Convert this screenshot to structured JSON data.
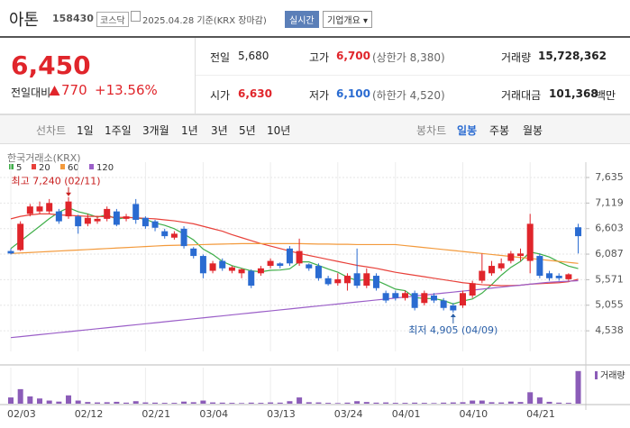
{
  "header": {
    "name": "아톤",
    "code": "158430",
    "market": "코스닥",
    "date": "2025.04.28 기준(KRX 장마감)",
    "buttons": [
      "실시간",
      "기업개요"
    ]
  },
  "summary": {
    "price": "6,450",
    "change_label": "전일대비",
    "change": "770",
    "change_pct": "+13.56%"
  },
  "quotes": [
    {
      "label": "전일",
      "value": "5,680"
    },
    {
      "label": "고가",
      "value": "6,700",
      "note": "(상한가 8,380)"
    },
    {
      "label": "거래량",
      "value": "15,728,362"
    },
    {
      "label": "시가",
      "value": "6,630"
    },
    {
      "label": "저가",
      "value": "6,100",
      "note": "(하한가 4,520)"
    },
    {
      "label": "거래대금",
      "value": "101,368",
      "unit": "백만"
    }
  ],
  "tabs": {
    "line": {
      "label": "선차트",
      "items": [
        "1일",
        "1주일",
        "3개월",
        "1년",
        "3년",
        "5년",
        "10년"
      ]
    },
    "candle": {
      "label": "봉차트",
      "items": [
        "일봉",
        "주봉",
        "월봉"
      ]
    }
  },
  "chart_data": {
    "type": "candlestick",
    "source": "한국거래소(KRX)",
    "volume_label": "거래량",
    "categories": [
      "02/03",
      null,
      null,
      null,
      null,
      null,
      null,
      "02/12",
      null,
      null,
      null,
      null,
      null,
      null,
      "02/21",
      null,
      null,
      null,
      null,
      null,
      "03/04",
      null,
      null,
      null,
      null,
      null,
      null,
      "03/13",
      null,
      null,
      null,
      null,
      null,
      null,
      "03/24",
      null,
      null,
      null,
      null,
      null,
      "04/01",
      null,
      null,
      null,
      null,
      null,
      null,
      "04/10",
      null,
      null,
      null,
      null,
      null,
      null,
      "04/21",
      null,
      null,
      null,
      null,
      null
    ],
    "open": [
      6150,
      6170,
      6900,
      6950,
      6950,
      6950,
      6850,
      6850,
      6700,
      6750,
      6800,
      6950,
      6800,
      7100,
      6820,
      6750,
      6550,
      6420,
      6600,
      6200,
      6050,
      5750,
      5950,
      5750,
      5700,
      5750,
      5700,
      5850,
      5900,
      6200,
      5900,
      5880,
      5850,
      5600,
      5500,
      5500,
      5700,
      5450,
      5650,
      5300,
      5300,
      5200,
      5300,
      5100,
      5250,
      5150,
      5050,
      5050,
      5250,
      5550,
      5700,
      5800,
      5950,
      6050,
      5950,
      6050,
      5700,
      5650,
      5580,
      6630
    ],
    "high": [
      6200,
      6750,
      7100,
      7150,
      7200,
      7000,
      7240,
      6880,
      6900,
      6850,
      7050,
      7000,
      6900,
      7200,
      6850,
      6780,
      6600,
      6550,
      6650,
      6230,
      6080,
      5950,
      6000,
      5850,
      5800,
      5780,
      5850,
      6000,
      5920,
      6250,
      6400,
      5900,
      5900,
      5650,
      5700,
      5700,
      6200,
      5800,
      5700,
      5350,
      5350,
      5350,
      5350,
      5350,
      5300,
      5200,
      5100,
      5350,
      5550,
      6100,
      5950,
      6000,
      6150,
      6200,
      6900,
      6100,
      5750,
      5700,
      5700,
      6700
    ],
    "low": [
      6080,
      6150,
      6850,
      6900,
      6900,
      6700,
      6800,
      6500,
      6650,
      6700,
      6750,
      6650,
      6750,
      6700,
      6600,
      6550,
      6400,
      6380,
      6200,
      6000,
      5600,
      5700,
      5750,
      5700,
      5600,
      5400,
      5650,
      5800,
      5800,
      5850,
      5850,
      5750,
      5550,
      5450,
      5450,
      5350,
      5400,
      5400,
      5350,
      5100,
      5150,
      5150,
      4950,
      5050,
      5100,
      4950,
      4905,
      5000,
      5200,
      5500,
      5650,
      5750,
      5900,
      5950,
      5700,
      5600,
      5550,
      5550,
      5550,
      6100
    ],
    "close": [
      6100,
      6700,
      7050,
      7050,
      7120,
      6750,
      7150,
      6650,
      6820,
      6800,
      7000,
      6680,
      6850,
      6780,
      6650,
      6620,
      6450,
      6500,
      6250,
      6050,
      5700,
      5900,
      5800,
      5820,
      5780,
      5450,
      5800,
      5950,
      5850,
      5900,
      6150,
      5800,
      5600,
      5480,
      5580,
      5650,
      5450,
      5700,
      5400,
      5150,
      5200,
      5300,
      5000,
      5300,
      5150,
      5000,
      4950,
      5300,
      5500,
      5750,
      5850,
      5900,
      6100,
      6100,
      6700,
      5650,
      5600,
      5600,
      5680,
      6450
    ],
    "volume": [
      3000000,
      7000000,
      3500000,
      2500000,
      1500000,
      1000000,
      4000000,
      1500000,
      800000,
      600000,
      700000,
      900000,
      500000,
      1200000,
      600000,
      500000,
      400000,
      400000,
      1000000,
      700000,
      1500000,
      600000,
      500000,
      400000,
      300000,
      500000,
      400000,
      600000,
      500000,
      1200000,
      3000000,
      700000,
      600000,
      400000,
      300000,
      500000,
      1200000,
      800000,
      500000,
      600000,
      400000,
      400000,
      500000,
      400000,
      300000,
      500000,
      600000,
      700000,
      1500000,
      1500000,
      700000,
      600000,
      1000000,
      800000,
      5500000,
      3000000,
      900000,
      500000,
      400000,
      15728362
    ],
    "volume_ylim": [
      0,
      16500000
    ],
    "up_color": "#e0252b",
    "down_color": "#2a6bd1",
    "series": [
      {
        "name": "5",
        "color": "#3fae49",
        "values": [
          6200,
          6350,
          6500,
          6650,
          6804,
          6934,
          7024,
          6944,
          6898,
          6834,
          6884,
          6790,
          6830,
          6822,
          6792,
          6716,
          6670,
          6600,
          6494,
          6374,
          6190,
          6080,
          5940,
          5854,
          5800,
          5750,
          5730,
          5760,
          5766,
          5790,
          5930,
          5930,
          5860,
          5786,
          5722,
          5622,
          5552,
          5572,
          5556,
          5470,
          5380,
          5350,
          5210,
          5190,
          5190,
          5150,
          5080,
          5140,
          5180,
          5300,
          5470,
          5660,
          5820,
          5940,
          6130,
          6090,
          6030,
          5930,
          5846,
          5796
        ]
      },
      {
        "name": "20",
        "color": "#e8413a",
        "values": [
          6800,
          6850,
          6880,
          6900,
          6900,
          6880,
          6870,
          6860,
          6850,
          6850,
          6840,
          6830,
          6830,
          6820,
          6810,
          6800,
          6780,
          6760,
          6730,
          6700,
          6650,
          6600,
          6550,
          6480,
          6420,
          6360,
          6300,
          6250,
          6200,
          6150,
          6100,
          6060,
          6020,
          5980,
          5940,
          5900,
          5860,
          5830,
          5800,
          5760,
          5720,
          5690,
          5660,
          5630,
          5600,
          5570,
          5540,
          5510,
          5490,
          5470,
          5460,
          5450,
          5450,
          5460,
          5480,
          5490,
          5500,
          5510,
          5530,
          5580
        ]
      },
      {
        "name": "60",
        "color": "#f39a3c",
        "values": [
          6100,
          6110,
          6120,
          6130,
          6140,
          6150,
          6160,
          6170,
          6180,
          6190,
          6200,
          6210,
          6220,
          6230,
          6240,
          6250,
          6260,
          6265,
          6270,
          6275,
          6280,
          6285,
          6290,
          6295,
          6300,
          6300,
          6300,
          6300,
          6300,
          6300,
          6300,
          6295,
          6290,
          6290,
          6285,
          6285,
          6280,
          6280,
          6280,
          6280,
          6280,
          6260,
          6240,
          6220,
          6200,
          6180,
          6160,
          6140,
          6120,
          6100,
          6080,
          6060,
          6040,
          6020,
          6000,
          5980,
          5960,
          5940,
          5920,
          5900
        ]
      },
      {
        "name": "120",
        "color": "#9b5fc8",
        "values": [
          4400,
          4420,
          4440,
          4460,
          4480,
          4500,
          4520,
          4540,
          4560,
          4580,
          4600,
          4620,
          4640,
          4660,
          4680,
          4700,
          4720,
          4740,
          4760,
          4780,
          4800,
          4820,
          4840,
          4860,
          4880,
          4900,
          4920,
          4940,
          4960,
          4980,
          5000,
          5020,
          5040,
          5060,
          5080,
          5100,
          5120,
          5140,
          5160,
          5180,
          5200,
          5220,
          5240,
          5260,
          5280,
          5300,
          5320,
          5340,
          5360,
          5380,
          5400,
          5420,
          5440,
          5460,
          5480,
          5500,
          5520,
          5530,
          5540,
          5550
        ]
      }
    ],
    "ylim": [
      4340,
      7890
    ],
    "yticks": [
      {
        "value": 7635,
        "label": "7,635"
      },
      {
        "value": 7119,
        "label": "7,119"
      },
      {
        "value": 6603,
        "label": "6,603"
      },
      {
        "value": 6087,
        "label": "6,087"
      },
      {
        "value": 5571,
        "label": "5,571"
      },
      {
        "value": 5055,
        "label": "5,055"
      },
      {
        "value": 4538,
        "label": "4,538"
      }
    ],
    "annotations": [
      {
        "text": "최고 7,240 (02/11)",
        "index": 6
      },
      {
        "text": "최저 4,905 (04/09)",
        "index": 46
      }
    ],
    "grid": true
  }
}
